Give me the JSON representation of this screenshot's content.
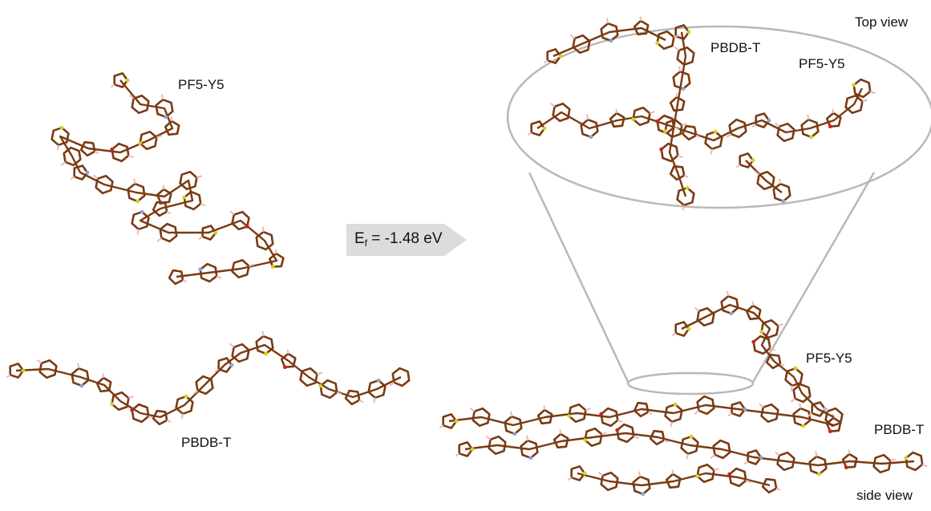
{
  "labels": {
    "pf5_left": "PF5-Y5",
    "pbdb_left": "PBDB-T",
    "top_view": "Top view",
    "pbdb_top": "PBDB-T",
    "pf5_top": "PF5-Y5",
    "pf5_side": "PF5-Y5",
    "pbdb_side": "PBDB-T",
    "side_view": "side view"
  },
  "energy": {
    "symbol": "E",
    "subscript": "f",
    "value_text": " = -1.48 eV"
  },
  "colors": {
    "carbon_bond": "#7a3a12",
    "sulfur": "#d6d21a",
    "oxygen": "#d0221a",
    "nitrogen": "#8fa3d6",
    "hydrogen": "#e6b9b9",
    "zoom_outline": "#b8b8b8",
    "arrow_fill": "#dcdcdc"
  }
}
